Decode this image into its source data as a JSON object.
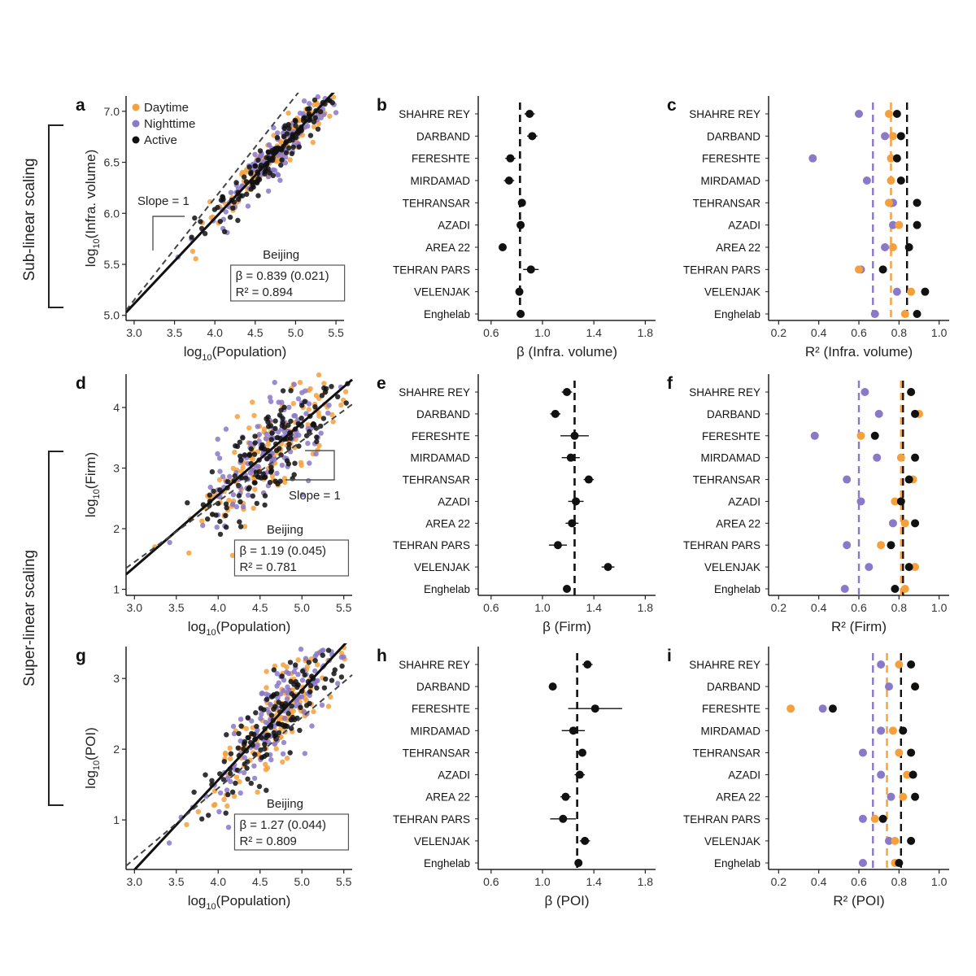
{
  "colors": {
    "daytime": "#f5a03c",
    "nighttime": "#8a78c8",
    "active": "#111111"
  },
  "side_labels": {
    "sub": "Sub-linear scaling",
    "super": "Super-linear scaling"
  },
  "legend": [
    "Daytime",
    "Nighttime",
    "Active"
  ],
  "cities": [
    "SHAHRE REY",
    "DARBAND",
    "FERESHTE",
    "MIRDAMAD",
    "TEHRANSAR",
    "AZADI",
    "AREA 22",
    "TEHRAN PARS",
    "VELENJAK",
    "Enghelab"
  ],
  "chart_data": [
    {
      "id": "a",
      "type": "scatter",
      "panel_label": "a",
      "xlabel_main": "log",
      "xlabel_sub": "10",
      "xlabel_rest": "(Population)",
      "ylabel_main": "log",
      "ylabel_sub": "10",
      "ylabel_rest": "(Infra. volume)",
      "xlim": [
        2.9,
        5.6
      ],
      "ylim": [
        4.95,
        7.15
      ],
      "xticks": [
        "3.0",
        "3.5",
        "4.0",
        "4.5",
        "5.0",
        "5.5"
      ],
      "yticks": [
        "5.0",
        "5.5",
        "6.0",
        "6.5",
        "7.0"
      ],
      "fit": {
        "slope": 0.839,
        "x0": 3.7,
        "y0": 5.7
      },
      "slope1": {
        "x0": 3.7,
        "y0": 5.85
      },
      "slope_label": "Slope = 1",
      "city_label": "Beijing",
      "stats_beta": "β = 0.839 (0.021)",
      "stats_r2": "R² = 0.894",
      "scatter_center": [
        4.8,
        6.45
      ],
      "scatter_spread": 0.1
    },
    {
      "id": "d",
      "type": "scatter",
      "panel_label": "d",
      "ylabel_main": "log",
      "ylabel_sub": "10",
      "ylabel_rest": "(Firm)",
      "xlabel_main": "log",
      "xlabel_sub": "10",
      "xlabel_rest": "(Population)",
      "xlim": [
        2.9,
        5.6
      ],
      "ylim": [
        0.9,
        4.55
      ],
      "xticks": [
        "3.0",
        "3.5",
        "4.0",
        "4.5",
        "5.0",
        "5.5"
      ],
      "yticks": [
        "1",
        "2",
        "3",
        "4"
      ],
      "fit": {
        "slope": 1.19,
        "x0": 4.5,
        "y0": 3.15
      },
      "slope1": {
        "x0": 4.5,
        "y0": 2.95
      },
      "slope_label": "Slope = 1",
      "city_label": "Beijing",
      "stats_beta": "β = 1.19 (0.045)",
      "stats_r2": "R² = 0.781",
      "scatter_center": [
        4.6,
        3.25
      ],
      "scatter_spread": 0.35
    },
    {
      "id": "g",
      "type": "scatter",
      "panel_label": "g",
      "ylabel_main": "log",
      "ylabel_sub": "10",
      "ylabel_rest": "(POI)",
      "xlabel_main": "log",
      "xlabel_sub": "10",
      "xlabel_rest": "(Population)",
      "xlim": [
        2.9,
        5.6
      ],
      "ylim": [
        0.3,
        3.45
      ],
      "xticks": [
        "3.0",
        "3.5",
        "4.0",
        "4.5",
        "5.0",
        "5.5"
      ],
      "yticks": [
        "1",
        "2",
        "3"
      ],
      "fit": {
        "slope": 1.27,
        "x0": 4.5,
        "y0": 2.2
      },
      "slope1": {
        "x0": 4.5,
        "y0": 1.95
      },
      "slope_label": "",
      "city_label": "Beijing",
      "stats_beta": "β = 1.27 (0.044)",
      "stats_r2": "R² = 0.809",
      "scatter_center": [
        4.7,
        2.6
      ],
      "scatter_spread": 0.3
    },
    {
      "id": "b",
      "type": "forest",
      "panel_label": "b",
      "xlabel": "β (Infra. volume)",
      "xlim": [
        0.5,
        1.88
      ],
      "xticks": [
        "0.6",
        "1.0",
        "1.4",
        "1.8"
      ],
      "xtick_values": [
        0.6,
        1.0,
        1.4,
        1.8
      ],
      "ref_line": 0.825,
      "points": [
        {
          "v": 0.9,
          "lo": 0.86,
          "hi": 0.94
        },
        {
          "v": 0.92,
          "lo": 0.88,
          "hi": 0.96
        },
        {
          "v": 0.75,
          "lo": 0.71,
          "hi": 0.79
        },
        {
          "v": 0.74,
          "lo": 0.7,
          "hi": 0.78
        },
        {
          "v": 0.84,
          "lo": 0.82,
          "hi": 0.86
        },
        {
          "v": 0.83,
          "lo": 0.81,
          "hi": 0.85
        },
        {
          "v": 0.69,
          "lo": 0.67,
          "hi": 0.71
        },
        {
          "v": 0.91,
          "lo": 0.85,
          "hi": 0.97
        },
        {
          "v": 0.82,
          "lo": 0.8,
          "hi": 0.84
        },
        {
          "v": 0.83,
          "lo": 0.81,
          "hi": 0.85
        }
      ]
    },
    {
      "id": "e",
      "type": "forest",
      "panel_label": "e",
      "xlabel": "β (Firm)",
      "xlim": [
        0.5,
        1.88
      ],
      "xticks": [
        "0.6",
        "1.0",
        "1.4",
        "1.8"
      ],
      "xtick_values": [
        0.6,
        1.0,
        1.4,
        1.8
      ],
      "ref_line": 1.25,
      "points": [
        {
          "v": 1.19,
          "lo": 1.15,
          "hi": 1.23
        },
        {
          "v": 1.1,
          "lo": 1.06,
          "hi": 1.14
        },
        {
          "v": 1.25,
          "lo": 1.14,
          "hi": 1.36
        },
        {
          "v": 1.22,
          "lo": 1.15,
          "hi": 1.29
        },
        {
          "v": 1.36,
          "lo": 1.32,
          "hi": 1.4
        },
        {
          "v": 1.26,
          "lo": 1.2,
          "hi": 1.32
        },
        {
          "v": 1.23,
          "lo": 1.18,
          "hi": 1.28
        },
        {
          "v": 1.12,
          "lo": 1.05,
          "hi": 1.19
        },
        {
          "v": 1.51,
          "lo": 1.46,
          "hi": 1.56
        },
        {
          "v": 1.19,
          "lo": 1.16,
          "hi": 1.22
        }
      ]
    },
    {
      "id": "h",
      "type": "forest",
      "panel_label": "h",
      "xlabel": "β (POI)",
      "xlim": [
        0.5,
        1.88
      ],
      "xticks": [
        "0.6",
        "1.0",
        "1.4",
        "1.8"
      ],
      "xtick_values": [
        0.6,
        1.0,
        1.4,
        1.8
      ],
      "ref_line": 1.27,
      "points": [
        {
          "v": 1.35,
          "lo": 1.31,
          "hi": 1.39
        },
        {
          "v": 1.08,
          "lo": 1.05,
          "hi": 1.11
        },
        {
          "v": 1.41,
          "lo": 1.2,
          "hi": 1.62
        },
        {
          "v": 1.24,
          "lo": 1.15,
          "hi": 1.33
        },
        {
          "v": 1.31,
          "lo": 1.28,
          "hi": 1.34
        },
        {
          "v": 1.29,
          "lo": 1.25,
          "hi": 1.33
        },
        {
          "v": 1.18,
          "lo": 1.14,
          "hi": 1.22
        },
        {
          "v": 1.16,
          "lo": 1.06,
          "hi": 1.26
        },
        {
          "v": 1.33,
          "lo": 1.29,
          "hi": 1.37
        },
        {
          "v": 1.28,
          "lo": 1.25,
          "hi": 1.31
        }
      ]
    },
    {
      "id": "c",
      "type": "dotplot",
      "panel_label": "c",
      "xlabel": "R² (Infra. volume)",
      "xlim": [
        0.15,
        1.05
      ],
      "xticks": [
        "0.2",
        "0.4",
        "0.6",
        "0.8",
        "1.0"
      ],
      "xtick_values": [
        0.2,
        0.4,
        0.6,
        0.8,
        1.0
      ],
      "ref_lines": {
        "nighttime": 0.67,
        "daytime": 0.76,
        "active": 0.84
      },
      "points": [
        {
          "night": 0.6,
          "day": 0.75,
          "active": 0.79
        },
        {
          "night": 0.73,
          "day": 0.77,
          "active": 0.81
        },
        {
          "night": 0.37,
          "day": 0.76,
          "active": 0.79
        },
        {
          "night": 0.64,
          "day": 0.76,
          "active": 0.81
        },
        {
          "night": 0.77,
          "day": 0.75,
          "active": 0.89
        },
        {
          "night": 0.77,
          "day": 0.8,
          "active": 0.89
        },
        {
          "night": 0.73,
          "day": 0.77,
          "active": 0.85
        },
        {
          "night": 0.61,
          "day": 0.6,
          "active": 0.72
        },
        {
          "night": 0.79,
          "day": 0.86,
          "active": 0.93
        },
        {
          "night": 0.68,
          "day": 0.83,
          "active": 0.89
        }
      ]
    },
    {
      "id": "f",
      "type": "dotplot",
      "panel_label": "f",
      "xlabel": "R² (Firm)",
      "xlim": [
        0.15,
        1.05
      ],
      "xticks": [
        "0.2",
        "0.4",
        "0.6",
        "0.8",
        "1.0"
      ],
      "xtick_values": [
        0.2,
        0.4,
        0.6,
        0.8,
        1.0
      ],
      "ref_lines": {
        "nighttime": 0.6,
        "daytime": 0.81,
        "active": 0.82
      },
      "points": [
        {
          "night": 0.63,
          "day": 0.86,
          "active": 0.86
        },
        {
          "night": 0.7,
          "day": 0.9,
          "active": 0.88
        },
        {
          "night": 0.38,
          "day": 0.61,
          "active": 0.68
        },
        {
          "night": 0.69,
          "day": 0.81,
          "active": 0.88
        },
        {
          "night": 0.54,
          "day": 0.87,
          "active": 0.85
        },
        {
          "night": 0.61,
          "day": 0.78,
          "active": 0.81
        },
        {
          "night": 0.77,
          "day": 0.83,
          "active": 0.88
        },
        {
          "night": 0.54,
          "day": 0.71,
          "active": 0.76
        },
        {
          "night": 0.65,
          "day": 0.88,
          "active": 0.85
        },
        {
          "night": 0.53,
          "day": 0.83,
          "active": 0.78
        }
      ]
    },
    {
      "id": "i",
      "type": "dotplot",
      "panel_label": "i",
      "xlabel": "R² (POI)",
      "xlim": [
        0.15,
        1.05
      ],
      "xticks": [
        "0.2",
        "0.4",
        "0.6",
        "0.8",
        "1.0"
      ],
      "xtick_values": [
        0.2,
        0.4,
        0.6,
        0.8,
        1.0
      ],
      "ref_lines": {
        "nighttime": 0.67,
        "daytime": 0.74,
        "active": 0.81
      },
      "points": [
        {
          "night": 0.71,
          "day": 0.8,
          "active": 0.86
        },
        {
          "night": 0.75,
          "day": 0.88,
          "active": 0.88
        },
        {
          "night": 0.42,
          "day": 0.26,
          "active": 0.47
        },
        {
          "night": 0.71,
          "day": 0.77,
          "active": 0.82
        },
        {
          "night": 0.62,
          "day": 0.8,
          "active": 0.86
        },
        {
          "night": 0.71,
          "day": 0.84,
          "active": 0.87
        },
        {
          "night": 0.76,
          "day": 0.82,
          "active": 0.88
        },
        {
          "night": 0.62,
          "day": 0.68,
          "active": 0.72
        },
        {
          "night": 0.75,
          "day": 0.78,
          "active": 0.86
        },
        {
          "night": 0.62,
          "day": 0.78,
          "active": 0.8
        }
      ]
    }
  ]
}
